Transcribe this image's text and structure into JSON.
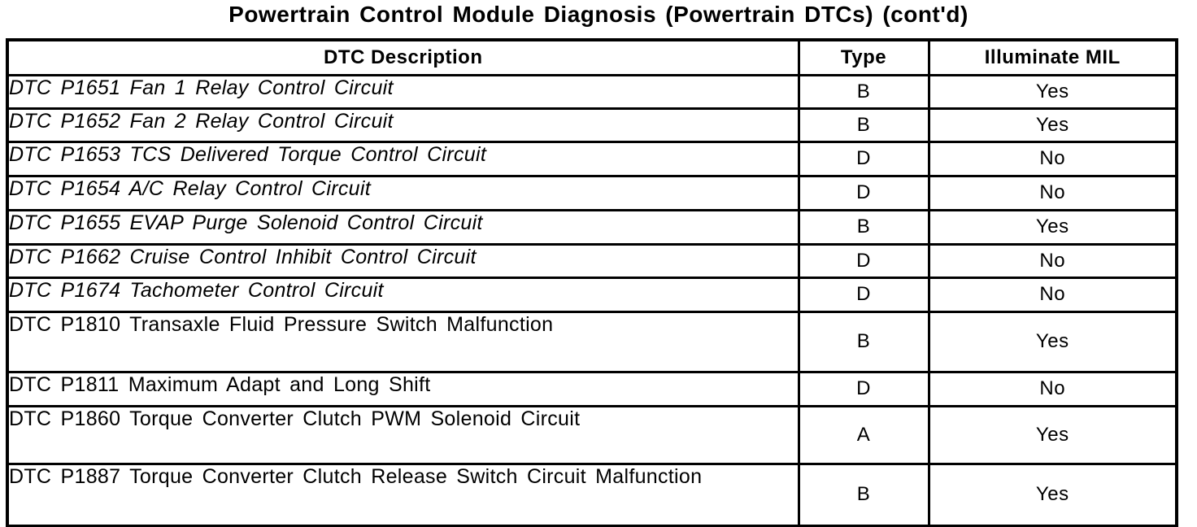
{
  "title": "Powertrain Control Module Diagnosis (Powertrain DTCs) (cont'd)",
  "colors": {
    "ink": "#000000",
    "paper": "#ffffff"
  },
  "table": {
    "headers": {
      "description": "DTC Description",
      "type": "Type",
      "mil": "Illuminate MIL"
    },
    "rows": [
      {
        "description": "DTC P1651 Fan 1 Relay Control Circuit",
        "type": "B",
        "mil": "Yes"
      },
      {
        "description": "DTC P1652 Fan 2 Relay Control Circuit",
        "type": "B",
        "mil": "Yes"
      },
      {
        "description": "DTC P1653 TCS Delivered Torque Control Circuit",
        "type": "D",
        "mil": "No"
      },
      {
        "description": "DTC P1654 A/C Relay Control Circuit",
        "type": "D",
        "mil": "No"
      },
      {
        "description": "DTC P1655 EVAP Purge Solenoid Control Circuit",
        "type": "B",
        "mil": "Yes"
      },
      {
        "description": "DTC P1662 Cruise Control Inhibit Control Circuit",
        "type": "D",
        "mil": "No"
      },
      {
        "description": "DTC P1674 Tachometer Control Circuit",
        "type": "D",
        "mil": "No"
      },
      {
        "description": "DTC P1810 Transaxle Fluid Pressure Switch Malfunction",
        "type": "B",
        "mil": "Yes"
      },
      {
        "description": "DTC P1811 Maximum Adapt and Long Shift",
        "type": "D",
        "mil": "No"
      },
      {
        "description": "DTC P1860 Torque Converter Clutch PWM Solenoid Circuit",
        "type": "A",
        "mil": "Yes"
      },
      {
        "description": "DTC P1887 Torque Converter Clutch Release Switch Circuit Malfunction",
        "type": "B",
        "mil": "Yes"
      }
    ]
  }
}
